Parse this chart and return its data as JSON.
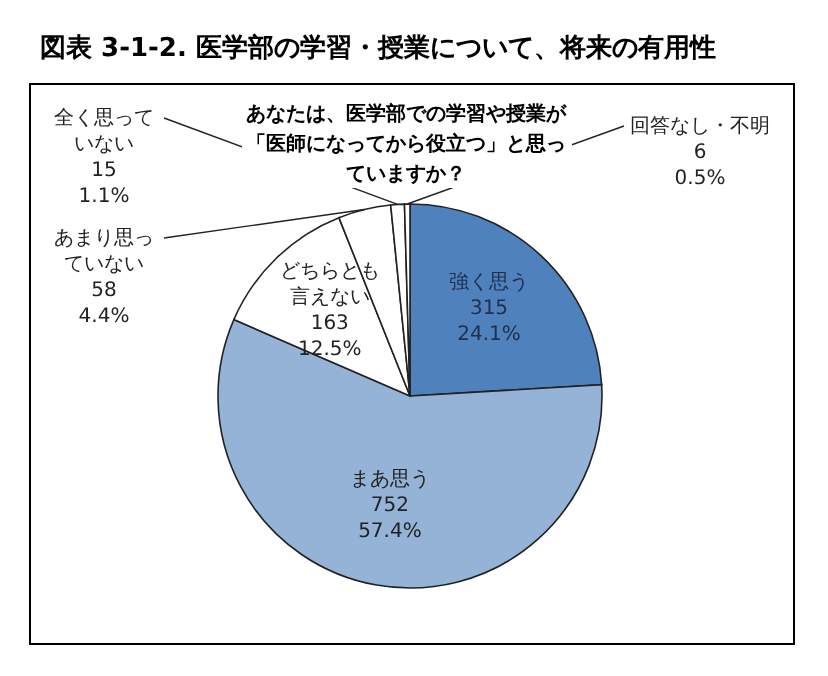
{
  "chart_data": {
    "type": "pie",
    "title": "図表 3-1-2.  医学部の学習・授業について、将来の有用性",
    "subtitle": "あなたは、医学部での学習や授業が「医師になってから役立つ」と思っていますか？",
    "categories": [
      "強く思う",
      "まあ思う",
      "どちらとも言えない",
      "あまり思っていない",
      "全く思っていない",
      "回答なし・不明"
    ],
    "values": [
      315,
      752,
      163,
      58,
      15,
      6
    ],
    "colors": [
      "#4f81bd",
      "#95b3d7",
      "#ffffff",
      "#ffffff",
      "#ffffff",
      "#ffffff"
    ],
    "value_labels": [
      "315\n24.1%",
      "752\n57.4%",
      "163\n12.5%",
      "58\n4.4%",
      "15\n1.1%",
      "6\n0.5%"
    ]
  }
}
